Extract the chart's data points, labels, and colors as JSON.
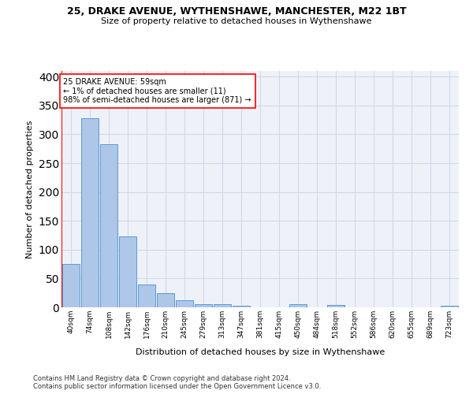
{
  "title_line1": "25, DRAKE AVENUE, WYTHENSHAWE, MANCHESTER, M22 1BT",
  "title_line2": "Size of property relative to detached houses in Wythenshawe",
  "xlabel": "Distribution of detached houses by size in Wythenshawe",
  "ylabel": "Number of detached properties",
  "footnote": "Contains HM Land Registry data © Crown copyright and database right 2024.\nContains public sector information licensed under the Open Government Licence v3.0.",
  "bar_labels": [
    "40sqm",
    "74sqm",
    "108sqm",
    "142sqm",
    "176sqm",
    "210sqm",
    "245sqm",
    "279sqm",
    "313sqm",
    "347sqm",
    "381sqm",
    "415sqm",
    "450sqm",
    "484sqm",
    "518sqm",
    "552sqm",
    "586sqm",
    "620sqm",
    "655sqm",
    "689sqm",
    "723sqm"
  ],
  "bar_values": [
    75,
    328,
    283,
    123,
    39,
    24,
    12,
    5,
    5,
    3,
    0,
    0,
    5,
    0,
    4,
    0,
    0,
    0,
    0,
    0,
    3
  ],
  "bar_color": "#aec6e8",
  "bar_edge_color": "#5b9bd5",
  "grid_color": "#d0d8e8",
  "background_color": "#eef2f8",
  "annotation_text": "25 DRAKE AVENUE: 59sqm\n← 1% of detached houses are smaller (11)\n98% of semi-detached houses are larger (871) →",
  "annotation_box_color": "white",
  "annotation_box_edge": "red",
  "ylim": [
    0,
    410
  ],
  "yticks": [
    0,
    50,
    100,
    150,
    200,
    250,
    300,
    350,
    400
  ]
}
